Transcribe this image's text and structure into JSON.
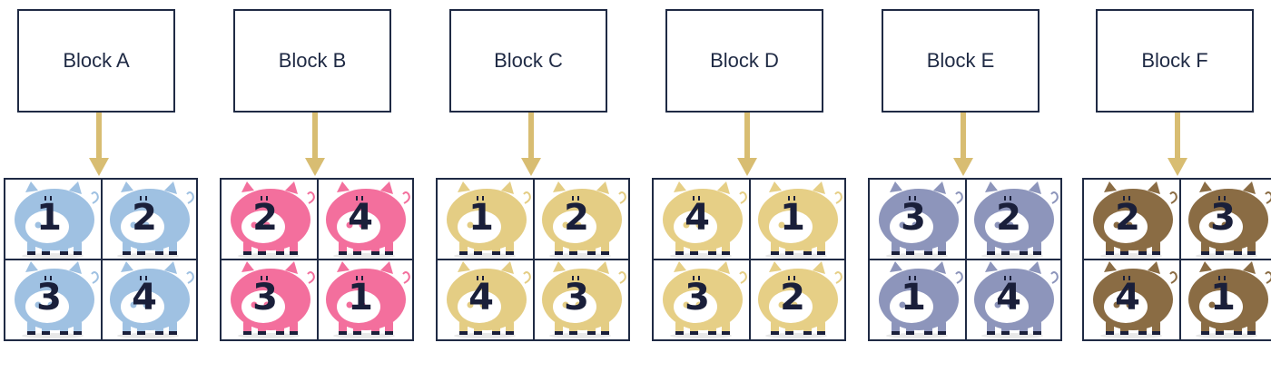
{
  "colors": {
    "outline": "#1f2a44",
    "arrow": "#d8bd72",
    "number": "#1a1f3a"
  },
  "blocks": [
    {
      "label": "Block A",
      "pig_color": "#9fc1e2",
      "pens": [
        "1",
        "2",
        "3",
        "4"
      ]
    },
    {
      "label": "Block B",
      "pig_color": "#f36f9d",
      "pens": [
        "2",
        "4",
        "3",
        "1"
      ]
    },
    {
      "label": "Block C",
      "pig_color": "#e4cd84",
      "pens": [
        "1",
        "2",
        "4",
        "3"
      ]
    },
    {
      "label": "Block D",
      "pig_color": "#e6cf86",
      "pens": [
        "4",
        "1",
        "3",
        "2"
      ]
    },
    {
      "label": "Block E",
      "pig_color": "#8d95bb",
      "pens": [
        "3",
        "2",
        "1",
        "4"
      ]
    },
    {
      "label": "Block F",
      "pig_color": "#8a6c44",
      "pens": [
        "2",
        "3",
        "4",
        "1"
      ]
    }
  ]
}
